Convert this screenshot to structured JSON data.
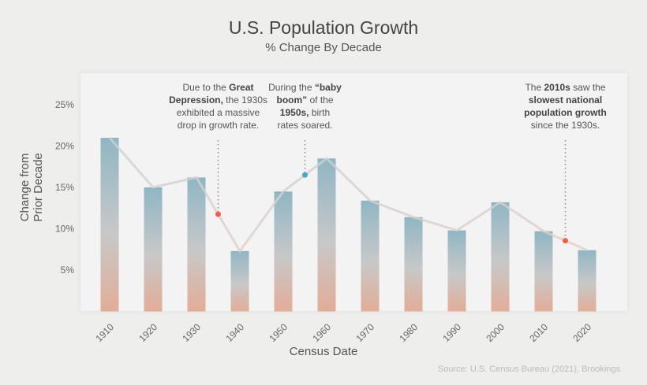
{
  "chart_data": {
    "type": "bar",
    "title": "U.S. Population Growth",
    "subtitle": "% Change By Decade",
    "xlabel": "Census Date",
    "ylabel": "Change from Prior Decade",
    "ylabel_lines": [
      "Change from",
      "Prior Decade"
    ],
    "categories": [
      "1910",
      "1920",
      "1930",
      "1940",
      "1950",
      "1960",
      "1970",
      "1980",
      "1990",
      "2000",
      "2010",
      "2020"
    ],
    "values": [
      21.0,
      15.0,
      16.2,
      7.3,
      14.5,
      18.5,
      13.4,
      11.4,
      9.8,
      13.2,
      9.7,
      7.4
    ],
    "ylim": [
      0,
      27
    ],
    "yticks": [
      5,
      10,
      15,
      20,
      25
    ],
    "ytick_labels": [
      "5%",
      "10%",
      "15%",
      "20%",
      "25%"
    ],
    "grid": false,
    "colors": {
      "bar_top": "#8fb6c4",
      "bar_bottom": "#e2ad98",
      "dot_red": "#f0604a",
      "dot_blue": "#4aa8c4"
    },
    "annotations": [
      {
        "between": [
          2,
          3
        ],
        "color": "dot_red",
        "parts": [
          [
            "Due to the ",
            false
          ],
          [
            "Great",
            true
          ],
          [
            "\n",
            false
          ],
          [
            "Depression,",
            true
          ],
          [
            " the 1930s\nexhibited a massive\ndrop in growth rate.",
            false
          ]
        ]
      },
      {
        "between": [
          4,
          5
        ],
        "color": "dot_blue",
        "parts": [
          [
            "During the ",
            false
          ],
          [
            "“baby\nboom”",
            true
          ],
          [
            " of the\n",
            false
          ],
          [
            "1950s,",
            true
          ],
          [
            " birth\nrates soared.",
            false
          ]
        ]
      },
      {
        "between": [
          10,
          11
        ],
        "color": "dot_red",
        "parts": [
          [
            "The ",
            false
          ],
          [
            "2010s",
            true
          ],
          [
            " saw the\n",
            false
          ],
          [
            "slowest national\npopulation growth",
            true
          ],
          [
            "\nsince the 1930s.",
            false
          ]
        ]
      }
    ]
  },
  "source": "Source: U.S. Census Bureau (2021), Brookings"
}
